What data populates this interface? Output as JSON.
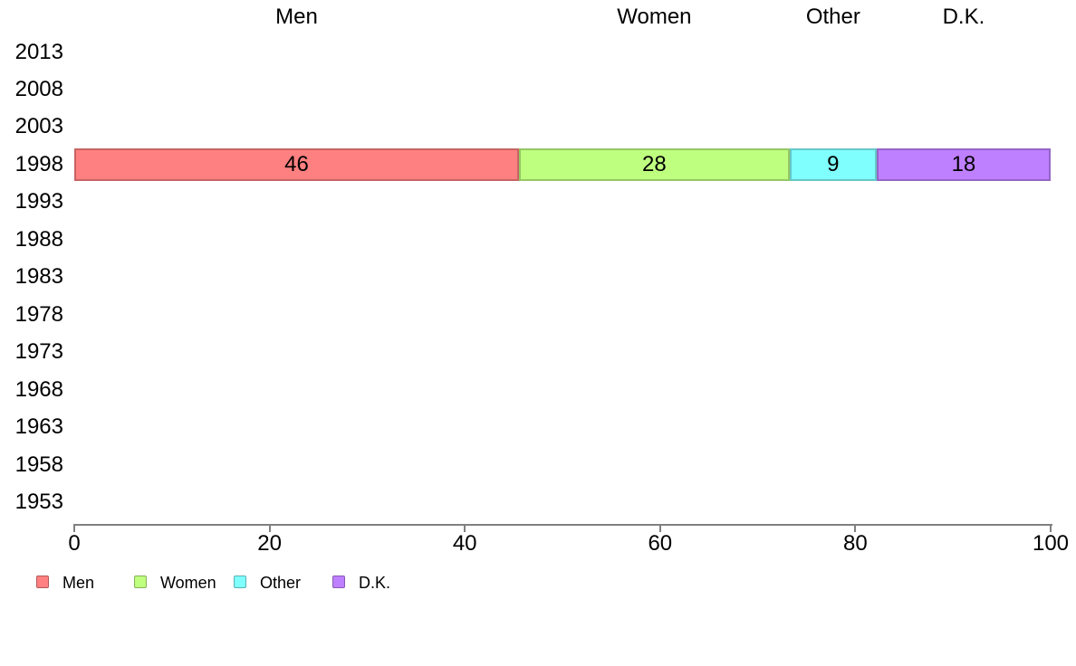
{
  "colors": {
    "background": "#FFFFFF",
    "axis": "#808080",
    "text": "#000000",
    "men": "#FF8080",
    "women": "#BFFF80",
    "other": "#80FFFF",
    "dk": "#BF80FF"
  },
  "chart_data": {
    "type": "bar",
    "orientation": "horizontal",
    "stacked": true,
    "title": "",
    "xlabel": "",
    "ylabel": "",
    "xlim": [
      0,
      100
    ],
    "grid": false,
    "categories": [
      "2013",
      "2008",
      "2003",
      "1998",
      "1993",
      "1988",
      "1983",
      "1978",
      "1973",
      "1968",
      "1963",
      "1958",
      "1953"
    ],
    "series": [
      {
        "name": "Men",
        "color": "#FF8080",
        "values": [
          null,
          null,
          null,
          46,
          null,
          null,
          null,
          null,
          null,
          null,
          null,
          null,
          null
        ]
      },
      {
        "name": "Women",
        "color": "#BFFF80",
        "values": [
          null,
          null,
          null,
          28,
          null,
          null,
          null,
          null,
          null,
          null,
          null,
          null,
          null
        ]
      },
      {
        "name": "Other",
        "color": "#80FFFF",
        "values": [
          null,
          null,
          null,
          9,
          null,
          null,
          null,
          null,
          null,
          null,
          null,
          null,
          null
        ]
      },
      {
        "name": "D.K.",
        "color": "#BF80FF",
        "values": [
          null,
          null,
          null,
          18,
          null,
          null,
          null,
          null,
          null,
          null,
          null,
          null,
          null
        ]
      }
    ],
    "column_headers": [
      "Men",
      "Women",
      "Other",
      "D.K."
    ],
    "x_ticks": [
      "0",
      "20",
      "40",
      "60",
      "80",
      "100"
    ],
    "legend": {
      "position": "bottom",
      "items": [
        {
          "label": "Men",
          "color": "#FF8080"
        },
        {
          "label": "Women",
          "color": "#BFFF80"
        },
        {
          "label": "Other",
          "color": "#80FFFF"
        },
        {
          "label": "D.K.",
          "color": "#BF80FF"
        }
      ]
    }
  }
}
